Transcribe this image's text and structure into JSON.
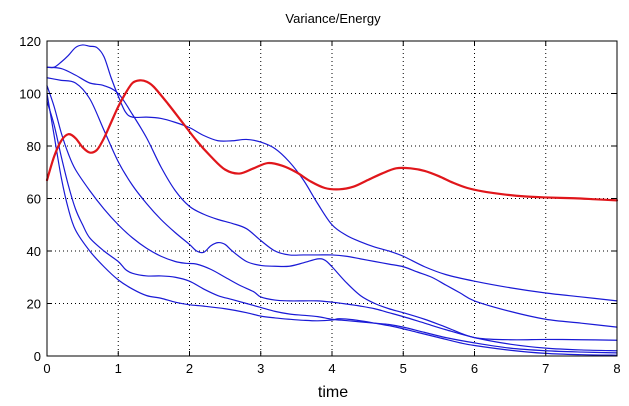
{
  "chart_data": {
    "type": "line",
    "title": "Variance/Energy",
    "xlabel": "time",
    "ylabel": "",
    "xlim": [
      0,
      8
    ],
    "ylim": [
      0,
      120
    ],
    "xticks": [
      "0",
      "1",
      "2",
      "3",
      "4",
      "5",
      "6",
      "7",
      "8"
    ],
    "yticks": [
      "0",
      "20",
      "40",
      "60",
      "80",
      "100",
      "120"
    ],
    "grid": true,
    "legend": "none",
    "series": [
      {
        "color": "#e0161b",
        "emphasis": true,
        "points": [
          [
            0,
            67
          ],
          [
            0.1,
            76
          ],
          [
            0.2,
            82
          ],
          [
            0.3,
            84.5
          ],
          [
            0.4,
            83
          ],
          [
            0.5,
            79.5
          ],
          [
            0.6,
            77.5
          ],
          [
            0.7,
            78.5
          ],
          [
            0.8,
            83
          ],
          [
            0.9,
            89
          ],
          [
            1.0,
            95
          ],
          [
            1.1,
            100
          ],
          [
            1.2,
            104
          ],
          [
            1.3,
            105
          ],
          [
            1.4,
            104.5
          ],
          [
            1.5,
            102.5
          ],
          [
            1.7,
            96
          ],
          [
            1.9,
            89
          ],
          [
            2.1,
            82
          ],
          [
            2.3,
            76
          ],
          [
            2.5,
            71
          ],
          [
            2.7,
            69.5
          ],
          [
            2.9,
            71.5
          ],
          [
            3.1,
            73.5
          ],
          [
            3.3,
            72.5
          ],
          [
            3.5,
            70
          ],
          [
            3.7,
            66.5
          ],
          [
            3.9,
            64
          ],
          [
            4.1,
            63.5
          ],
          [
            4.3,
            64.5
          ],
          [
            4.5,
            67
          ],
          [
            4.7,
            69.5
          ],
          [
            4.9,
            71.5
          ],
          [
            5.1,
            71.5
          ],
          [
            5.3,
            70.5
          ],
          [
            5.5,
            68.5
          ],
          [
            5.7,
            66
          ],
          [
            5.9,
            64
          ],
          [
            6.1,
            62.8
          ],
          [
            6.4,
            61.6
          ],
          [
            6.7,
            60.8
          ],
          [
            7.0,
            60.4
          ],
          [
            7.4,
            60.1
          ],
          [
            7.7,
            59.7
          ],
          [
            8.0,
            59.3
          ]
        ]
      },
      {
        "color": "#1a1ad6",
        "emphasis": false,
        "points": [
          [
            0,
            110
          ],
          [
            0.1,
            110
          ],
          [
            0.2,
            112
          ],
          [
            0.3,
            114.5
          ],
          [
            0.4,
            117.5
          ],
          [
            0.5,
            118.5
          ],
          [
            0.6,
            118
          ],
          [
            0.7,
            117.5
          ],
          [
            0.8,
            114
          ],
          [
            0.9,
            106
          ],
          [
            1.0,
            99
          ],
          [
            1.1,
            93
          ],
          [
            1.2,
            91
          ],
          [
            1.4,
            91
          ],
          [
            1.6,
            90.5
          ],
          [
            1.8,
            89
          ],
          [
            2.0,
            87
          ],
          [
            2.2,
            84
          ],
          [
            2.4,
            82
          ],
          [
            2.6,
            82
          ],
          [
            2.8,
            82.5
          ],
          [
            3.0,
            81.5
          ],
          [
            3.2,
            79
          ],
          [
            3.4,
            74
          ],
          [
            3.6,
            67
          ],
          [
            3.8,
            58
          ],
          [
            4.0,
            50
          ],
          [
            4.2,
            46
          ],
          [
            4.4,
            43.5
          ],
          [
            4.6,
            41.5
          ],
          [
            4.8,
            40
          ],
          [
            5.0,
            38
          ],
          [
            5.3,
            34
          ],
          [
            5.6,
            31
          ],
          [
            6.0,
            28.5
          ],
          [
            6.5,
            26
          ],
          [
            7.0,
            24
          ],
          [
            7.5,
            22.5
          ],
          [
            8.0,
            21
          ]
        ]
      },
      {
        "color": "#1a1ad6",
        "emphasis": false,
        "points": [
          [
            0,
            110
          ],
          [
            0.2,
            109.5
          ],
          [
            0.4,
            107
          ],
          [
            0.6,
            104
          ],
          [
            0.8,
            103
          ],
          [
            1.0,
            100
          ],
          [
            1.2,
            92
          ],
          [
            1.4,
            83
          ],
          [
            1.6,
            72
          ],
          [
            1.8,
            63
          ],
          [
            2.0,
            57
          ],
          [
            2.2,
            54
          ],
          [
            2.4,
            52
          ],
          [
            2.6,
            50.5
          ],
          [
            2.8,
            48.5
          ],
          [
            3.0,
            44
          ],
          [
            3.2,
            40
          ],
          [
            3.4,
            38.5
          ],
          [
            3.6,
            38.5
          ],
          [
            3.8,
            38.5
          ],
          [
            4.0,
            38.5
          ],
          [
            4.2,
            38
          ],
          [
            4.4,
            37
          ],
          [
            4.6,
            36
          ],
          [
            4.8,
            35
          ],
          [
            5.0,
            34
          ],
          [
            5.2,
            32
          ],
          [
            5.4,
            30
          ],
          [
            5.6,
            27
          ],
          [
            5.8,
            24
          ],
          [
            6.0,
            21
          ],
          [
            6.5,
            17
          ],
          [
            7.0,
            14
          ],
          [
            7.5,
            12.5
          ],
          [
            8.0,
            11
          ]
        ]
      },
      {
        "color": "#1a1ad6",
        "emphasis": false,
        "points": [
          [
            0,
            106
          ],
          [
            0.1,
            105.5
          ],
          [
            0.2,
            105
          ],
          [
            0.4,
            104
          ],
          [
            0.6,
            98
          ],
          [
            0.8,
            86
          ],
          [
            1.0,
            74
          ],
          [
            1.2,
            65
          ],
          [
            1.4,
            58
          ],
          [
            1.6,
            52
          ],
          [
            1.8,
            47
          ],
          [
            2.0,
            42.5
          ],
          [
            2.1,
            40
          ],
          [
            2.2,
            39.5
          ],
          [
            2.3,
            42
          ],
          [
            2.4,
            43.2
          ],
          [
            2.5,
            42.5
          ],
          [
            2.6,
            40
          ],
          [
            2.8,
            36
          ],
          [
            3.0,
            34.5
          ],
          [
            3.2,
            34.2
          ],
          [
            3.4,
            34.2
          ],
          [
            3.6,
            35.5
          ],
          [
            3.8,
            37
          ],
          [
            3.9,
            36.5
          ],
          [
            4.0,
            34
          ],
          [
            4.2,
            28
          ],
          [
            4.4,
            23
          ],
          [
            4.6,
            20
          ],
          [
            4.8,
            18
          ],
          [
            5.0,
            16.5
          ],
          [
            5.3,
            14
          ],
          [
            5.6,
            11
          ],
          [
            6.0,
            7
          ],
          [
            6.5,
            6.2
          ],
          [
            7.0,
            6.3
          ],
          [
            7.5,
            6.2
          ],
          [
            8.0,
            6
          ]
        ]
      },
      {
        "color": "#1a1ad6",
        "emphasis": false,
        "points": [
          [
            0,
            103
          ],
          [
            0.1,
            95
          ],
          [
            0.2,
            85
          ],
          [
            0.3,
            77
          ],
          [
            0.4,
            71
          ],
          [
            0.6,
            63
          ],
          [
            0.8,
            56
          ],
          [
            1.0,
            50
          ],
          [
            1.2,
            45
          ],
          [
            1.4,
            41
          ],
          [
            1.6,
            38
          ],
          [
            1.8,
            36
          ],
          [
            1.95,
            35.3
          ],
          [
            2.1,
            35
          ],
          [
            2.3,
            33
          ],
          [
            2.5,
            30
          ],
          [
            2.7,
            27
          ],
          [
            2.9,
            24.5
          ],
          [
            3.0,
            22.5
          ],
          [
            3.2,
            21.3
          ],
          [
            3.4,
            21
          ],
          [
            3.6,
            21
          ],
          [
            3.8,
            21
          ],
          [
            4.0,
            20.5
          ],
          [
            4.2,
            19.8
          ],
          [
            4.4,
            19
          ],
          [
            4.6,
            18
          ],
          [
            4.8,
            16.5
          ],
          [
            5.0,
            15
          ],
          [
            5.3,
            12.5
          ],
          [
            5.6,
            10
          ],
          [
            6.0,
            7
          ],
          [
            6.5,
            4.5
          ],
          [
            7.0,
            3
          ],
          [
            7.5,
            2.3
          ],
          [
            8.0,
            2
          ]
        ]
      },
      {
        "color": "#1a1ad6",
        "emphasis": false,
        "points": [
          [
            0,
            97
          ],
          [
            0.1,
            88
          ],
          [
            0.2,
            76
          ],
          [
            0.3,
            65
          ],
          [
            0.4,
            56
          ],
          [
            0.5,
            50
          ],
          [
            0.6,
            45
          ],
          [
            0.8,
            40
          ],
          [
            1.0,
            36
          ],
          [
            1.1,
            33
          ],
          [
            1.2,
            31.5
          ],
          [
            1.4,
            30.5
          ],
          [
            1.6,
            30.5
          ],
          [
            1.8,
            30
          ],
          [
            2.0,
            28.5
          ],
          [
            2.2,
            25.5
          ],
          [
            2.4,
            23
          ],
          [
            2.6,
            21.5
          ],
          [
            2.8,
            20
          ],
          [
            3.0,
            18.5
          ],
          [
            3.2,
            17
          ],
          [
            3.4,
            16
          ],
          [
            3.6,
            15.5
          ],
          [
            3.8,
            15
          ],
          [
            4.0,
            14
          ],
          [
            4.2,
            13.5
          ],
          [
            4.4,
            13
          ],
          [
            4.6,
            12.5
          ],
          [
            4.8,
            12
          ],
          [
            5.0,
            11
          ],
          [
            5.3,
            9
          ],
          [
            5.6,
            7
          ],
          [
            6.0,
            5
          ],
          [
            6.5,
            3
          ],
          [
            7.0,
            2
          ],
          [
            7.5,
            1.5
          ],
          [
            8.0,
            1.2
          ]
        ]
      },
      {
        "color": "#1a1ad6",
        "emphasis": false,
        "points": [
          [
            0,
            100
          ],
          [
            0.1,
            84
          ],
          [
            0.2,
            68
          ],
          [
            0.3,
            56
          ],
          [
            0.4,
            48
          ],
          [
            0.6,
            40
          ],
          [
            0.8,
            34
          ],
          [
            1.0,
            29
          ],
          [
            1.2,
            25.5
          ],
          [
            1.4,
            23
          ],
          [
            1.6,
            22
          ],
          [
            1.8,
            20.5
          ],
          [
            2.0,
            19.5
          ],
          [
            2.2,
            19
          ],
          [
            2.5,
            18
          ],
          [
            2.8,
            16.5
          ],
          [
            3.0,
            15.2
          ],
          [
            3.2,
            14.5
          ],
          [
            3.4,
            14
          ],
          [
            3.6,
            13.6
          ],
          [
            3.8,
            13.4
          ],
          [
            4.0,
            13.7
          ],
          [
            4.1,
            14.2
          ],
          [
            4.3,
            13.8
          ],
          [
            4.6,
            12.5
          ],
          [
            4.9,
            11
          ],
          [
            5.2,
            9
          ],
          [
            5.5,
            7
          ],
          [
            5.8,
            5
          ],
          [
            6.0,
            4
          ],
          [
            6.5,
            2.2
          ],
          [
            7.0,
            1
          ],
          [
            7.5,
            0.5
          ],
          [
            8.0,
            0.3
          ]
        ]
      }
    ]
  }
}
